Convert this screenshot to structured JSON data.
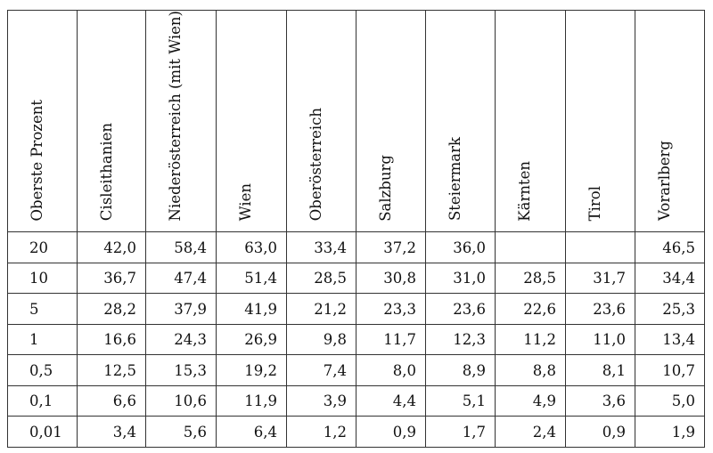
{
  "table": {
    "headers": [
      "Oberste Prozent",
      "Cisleithanien",
      "Niederösterreich (mit Wien)",
      "Wien",
      "Oberösterreich",
      "Salzburg",
      "Steiermark",
      "Kärnten",
      "Tirol",
      "Vorarlberg"
    ],
    "rows": [
      [
        "20",
        "42,0",
        "58,4",
        "63,0",
        "33,4",
        "37,2",
        "36,0",
        "",
        "",
        "46,5"
      ],
      [
        "10",
        "36,7",
        "47,4",
        "51,4",
        "28,5",
        "30,8",
        "31,0",
        "28,5",
        "31,7",
        "34,4"
      ],
      [
        "5",
        "28,2",
        "37,9",
        "41,9",
        "21,2",
        "23,3",
        "23,6",
        "22,6",
        "23,6",
        "25,3"
      ],
      [
        "1",
        "16,6",
        "24,3",
        "26,9",
        "9,8",
        "11,7",
        "12,3",
        "11,2",
        "11,0",
        "13,4"
      ],
      [
        "0,5",
        "12,5",
        "15,3",
        "19,2",
        "7,4",
        "8,0",
        "8,9",
        "8,8",
        "8,1",
        "10,7"
      ],
      [
        "0,1",
        "6,6",
        "10,6",
        "11,9",
        "3,9",
        "4,4",
        "5,1",
        "4,9",
        "3,6",
        "5,0"
      ],
      [
        "0,01",
        "3,4",
        "5,6",
        "6,4",
        "1,2",
        "0,9",
        "1,7",
        "2,4",
        "0,9",
        "1,9"
      ]
    ]
  }
}
